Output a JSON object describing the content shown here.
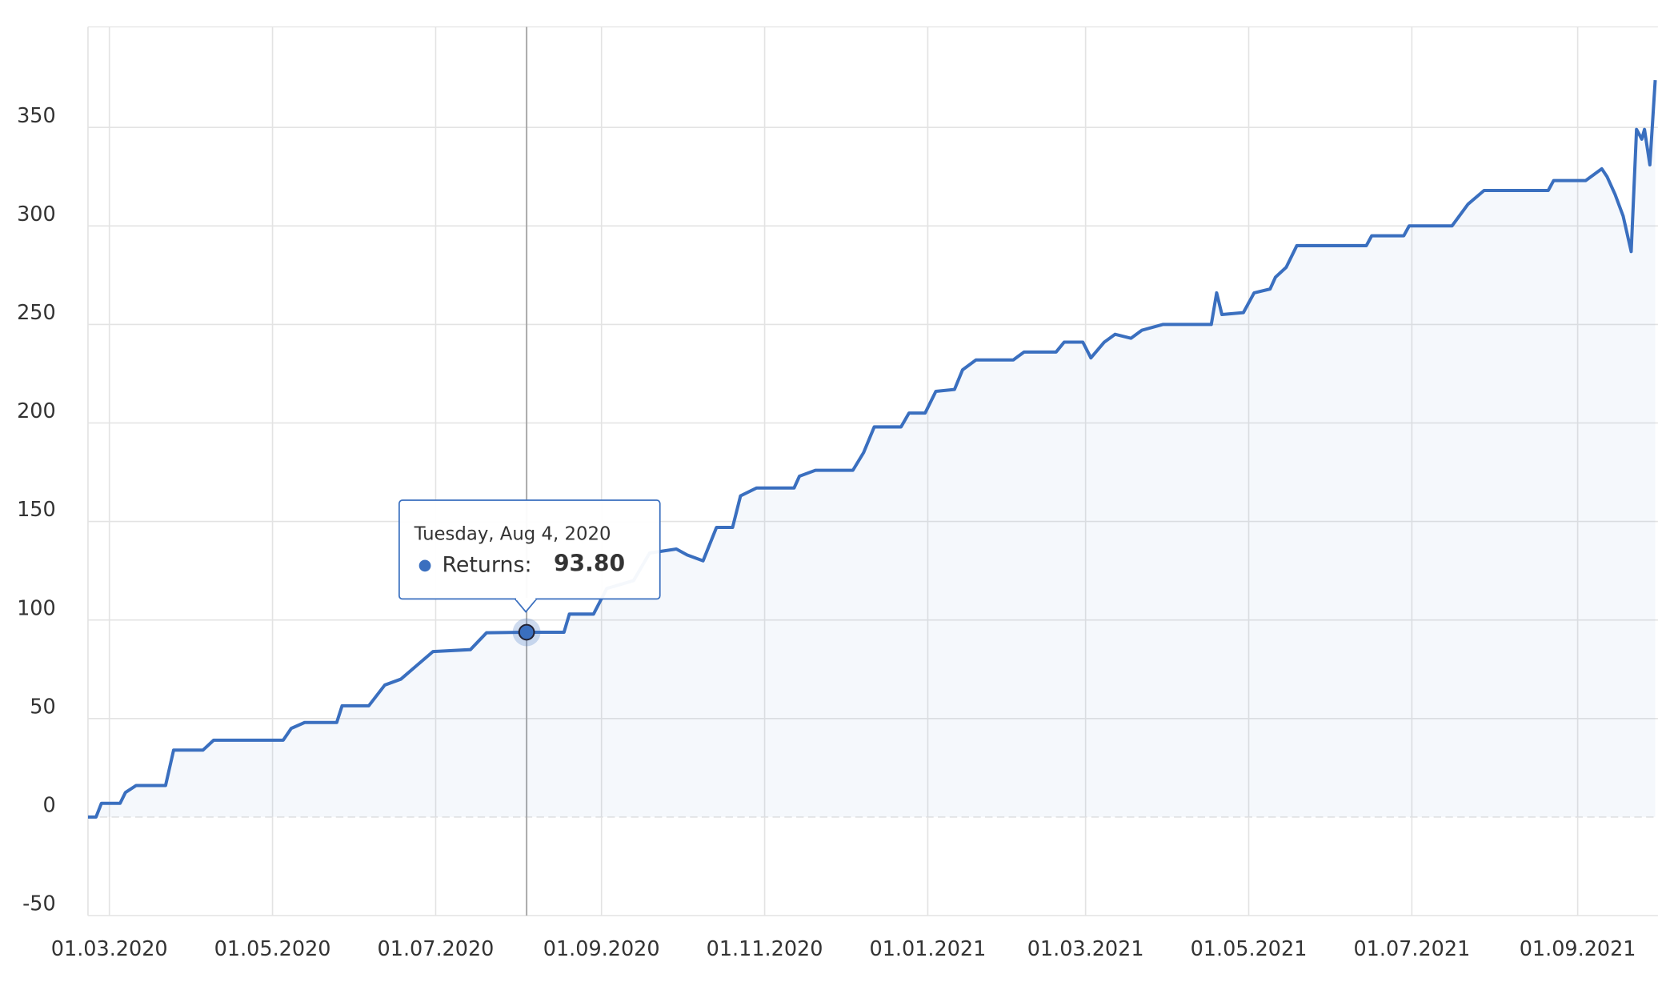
{
  "chart_data": {
    "type": "line",
    "x": [
      "2020-02-22",
      "2020-02-25",
      "2020-02-27",
      "2020-03-05",
      "2020-03-07",
      "2020-03-11",
      "2020-03-22",
      "2020-03-25",
      "2020-04-05",
      "2020-04-09",
      "2020-05-05",
      "2020-05-08",
      "2020-05-13",
      "2020-05-25",
      "2020-05-27",
      "2020-06-06",
      "2020-06-12",
      "2020-06-18",
      "2020-06-24",
      "2020-06-30",
      "2020-07-14",
      "2020-07-20",
      "2020-08-04",
      "2020-08-18",
      "2020-08-20",
      "2020-08-29",
      "2020-09-03",
      "2020-09-13",
      "2020-09-19",
      "2020-09-29",
      "2020-10-03",
      "2020-10-09",
      "2020-10-14",
      "2020-10-20",
      "2020-10-23",
      "2020-10-29",
      "2020-11-12",
      "2020-11-14",
      "2020-11-20",
      "2020-12-04",
      "2020-12-08",
      "2020-12-12",
      "2020-12-22",
      "2020-12-25",
      "2020-12-31",
      "2021-01-04",
      "2021-01-11",
      "2021-01-14",
      "2021-01-19",
      "2021-02-02",
      "2021-02-06",
      "2021-02-18",
      "2021-02-21",
      "2021-02-28",
      "2021-03-03",
      "2021-03-08",
      "2021-03-12",
      "2021-03-18",
      "2021-03-22",
      "2021-03-30",
      "2021-04-17",
      "2021-04-19",
      "2021-04-21",
      "2021-04-29",
      "2021-05-03",
      "2021-05-09",
      "2021-05-11",
      "2021-05-15",
      "2021-05-19",
      "2021-06-14",
      "2021-06-16",
      "2021-06-28",
      "2021-06-30",
      "2021-07-16",
      "2021-07-22",
      "2021-07-28",
      "2021-08-21",
      "2021-08-23",
      "2021-09-04",
      "2021-09-10",
      "2021-09-12",
      "2021-09-15",
      "2021-09-18",
      "2021-09-21",
      "2021-09-23",
      "2021-09-25",
      "2021-09-26",
      "2021-09-28",
      "2021-09-30"
    ],
    "series": [
      {
        "color": "#3a6fbf",
        "values": [
          0,
          0,
          7,
          7,
          12.5,
          16,
          16,
          34,
          34,
          39,
          39,
          45,
          48,
          48,
          56.5,
          56.5,
          67,
          70,
          77,
          84,
          85,
          93.5,
          93.8,
          93.8,
          103,
          103,
          116,
          120,
          134,
          136,
          133,
          130,
          147,
          147,
          163,
          167,
          167,
          173,
          176,
          176,
          185,
          198,
          198,
          205,
          205,
          216,
          217,
          227,
          232,
          232,
          236,
          236,
          241,
          241,
          233,
          241,
          245,
          243,
          247,
          250,
          250,
          266,
          255,
          256,
          266,
          268,
          274,
          279,
          290,
          290,
          295,
          295,
          300,
          300,
          311,
          318,
          318,
          323,
          323,
          329,
          325,
          316,
          305,
          287,
          349,
          344,
          349,
          331,
          374
        ]
      }
    ],
    "xlim": [
      "2020-02-22",
      "2021-10-01"
    ],
    "xticks": [
      {
        "value": "2020-03-01",
        "label": "01.03.2020"
      },
      {
        "value": "2020-05-01",
        "label": "01.05.2020"
      },
      {
        "value": "2020-07-01",
        "label": "01.07.2020"
      },
      {
        "value": "2020-09-01",
        "label": "01.09.2020"
      },
      {
        "value": "2020-11-01",
        "label": "01.11.2020"
      },
      {
        "value": "2021-01-01",
        "label": "01.01.2021"
      },
      {
        "value": "2021-03-01",
        "label": "01.03.2021"
      },
      {
        "value": "2021-05-01",
        "label": "01.05.2021"
      },
      {
        "value": "2021-07-01",
        "label": "01.07.2021"
      },
      {
        "value": "2021-09-01",
        "label": "01.09.2021"
      }
    ],
    "ylim": [
      -50,
      401
    ],
    "yticks": [
      -50,
      0,
      50,
      100,
      150,
      200,
      250,
      300,
      350
    ],
    "grid": true,
    "tooltip": {
      "x": "2020-08-04",
      "date_label": "Tuesday, Aug 4, 2020",
      "label": "Returns:",
      "value": 93.8,
      "value_label": "93.80"
    }
  }
}
